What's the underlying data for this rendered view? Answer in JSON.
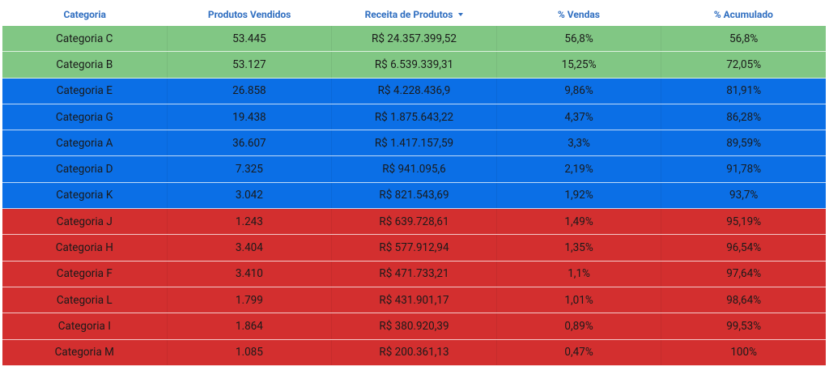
{
  "table": {
    "header": [
      "Categoria",
      "Produtos Vendidos",
      "Receita de Produtos",
      "% Vendas",
      "% Acumulado"
    ],
    "rows": [
      [
        "Categoria C",
        "53.445",
        "R$ 24.357.399,52",
        "56,8%",
        "56,8%"
      ],
      [
        "Categoria B",
        "53.127",
        "R$ 6.539.339,31",
        "15,25%",
        "72,05%"
      ],
      [
        "Categoria E",
        "26.858",
        "R$ 4.228.436,9",
        "9,86%",
        "81,91%"
      ],
      [
        "Categoria G",
        "19.438",
        "R$ 1.875.643,22",
        "4,37%",
        "86,28%"
      ],
      [
        "Categoria A",
        "36.607",
        "R$ 1.417.157,59",
        "3,3%",
        "89,59%"
      ],
      [
        "Categoria D",
        "7.325",
        "R$ 941.095,6",
        "2,19%",
        "91,78%"
      ],
      [
        "Categoria K",
        "3.042",
        "R$ 821.543,69",
        "1,92%",
        "93,7%"
      ],
      [
        "Categoria J",
        "1.243",
        "R$ 639.728,61",
        "1,49%",
        "95,19%"
      ],
      [
        "Categoria H",
        "3.404",
        "R$ 577.912,94",
        "1,35%",
        "96,54%"
      ],
      [
        "Categoria F",
        "3.410",
        "R$ 471.733,21",
        "1,1%",
        "97,64%"
      ],
      [
        "Categoria L",
        "1.799",
        "R$ 431.901,17",
        "1,01%",
        "98,64%"
      ],
      [
        "Categoria I",
        "1.864",
        "R$ 380.920,39",
        "0,89%",
        "99,53%"
      ],
      [
        "Categoria M",
        "1.085",
        "R$ 200.361,13",
        "0,47%",
        "100%"
      ]
    ],
    "row_colors": [
      "#81c784",
      "#81c784",
      "#0b6fe6",
      "#0b6fe6",
      "#0b6fe6",
      "#0b6fe6",
      "#0b6fe6",
      "#d32f2f",
      "#d32f2f",
      "#d32f2f",
      "#d32f2f",
      "#d32f2f",
      "#d32f2f"
    ],
    "sorted_column": 2
  }
}
